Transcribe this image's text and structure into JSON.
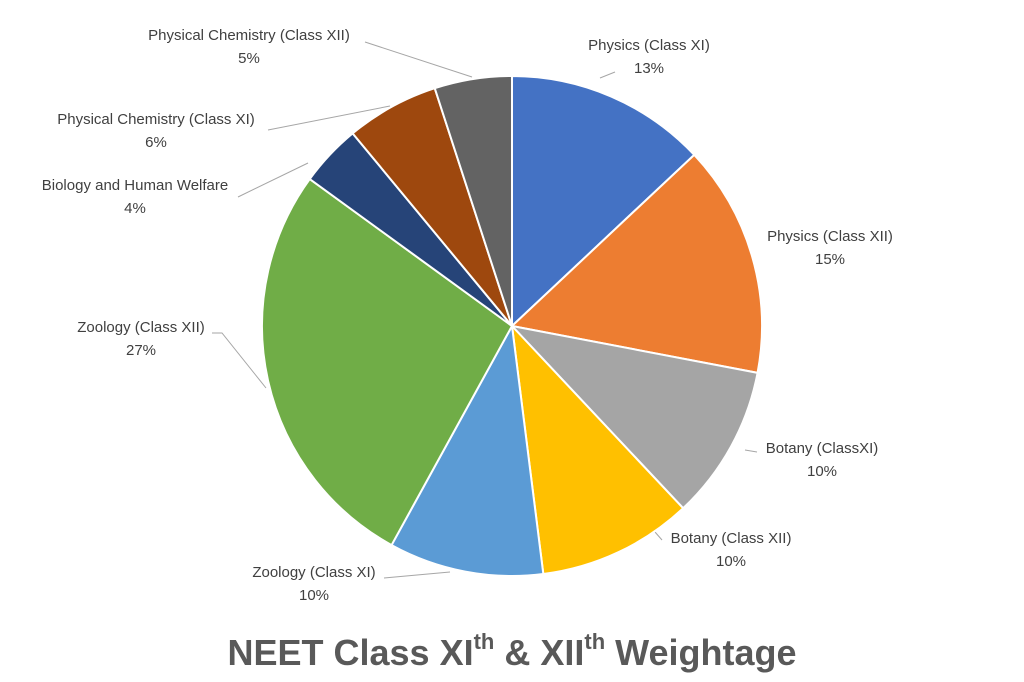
{
  "chart_data": {
    "type": "pie",
    "title_parts": [
      "NEET Class XI",
      "th",
      " & XII",
      "th",
      " Weightage"
    ],
    "categories": [
      "Physics (Class XI)",
      "Physics (Class XII)",
      "Botany (ClassXI)",
      "Botany (Class XII)",
      "Zoology (Class XI)",
      "Zoology (Class XII)",
      "Biology and Human Welfare",
      "Physical Chemistry (Class XI)",
      "Physical Chemistry (Class XII)"
    ],
    "values": [
      13,
      15,
      10,
      10,
      10,
      27,
      4,
      6,
      5
    ],
    "value_labels": [
      "13%",
      "15%",
      "10%",
      "10%",
      "10%",
      "27%",
      "4%",
      "6%",
      "5%"
    ],
    "colors": [
      "#4472c4",
      "#ed7d31",
      "#a5a5a5",
      "#ffc000",
      "#5b9bd5",
      "#70ad47",
      "#264478",
      "#9e480e",
      "#636363"
    ]
  }
}
